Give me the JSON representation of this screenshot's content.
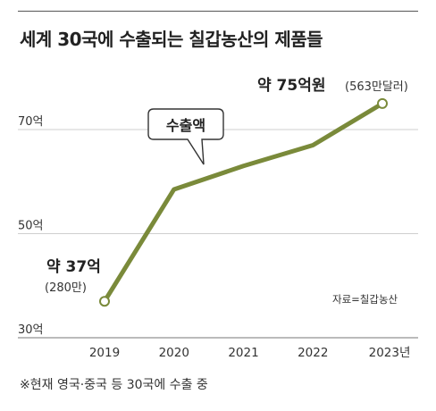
{
  "title": "세계 30국에 수출되는 칠갑농산의 제품들",
  "footnote": "※현재 영국·중국 등 30국에 수출 중",
  "source": "자료=칠갑농산",
  "colors": {
    "line": "#7a8a3a",
    "grid": "#cfcfcf",
    "marker_fill": "#ffffff",
    "text": "#222222"
  },
  "chart_data": {
    "type": "line",
    "title": "세계 30국에 수출되는 칠갑농산의 제품들",
    "x": [
      2019,
      2020,
      2021,
      2022,
      2023
    ],
    "x_tick_labels": [
      "2019",
      "2020",
      "2021",
      "2022",
      "2023년"
    ],
    "y_tick_labels": [
      "30억",
      "50억",
      "70억"
    ],
    "y_ticks": [
      30,
      50,
      70
    ],
    "ylim": [
      30,
      70
    ],
    "series": [
      {
        "values": [
          37,
          58.5,
          63,
          67,
          75
        ]
      }
    ],
    "annotations": {
      "start_main": "약 37억",
      "start_sub": "(280만)",
      "end_main": "약 75억원",
      "end_sub": "(563만달러)",
      "callout": "수출액"
    },
    "grid": true,
    "legend": "none"
  }
}
